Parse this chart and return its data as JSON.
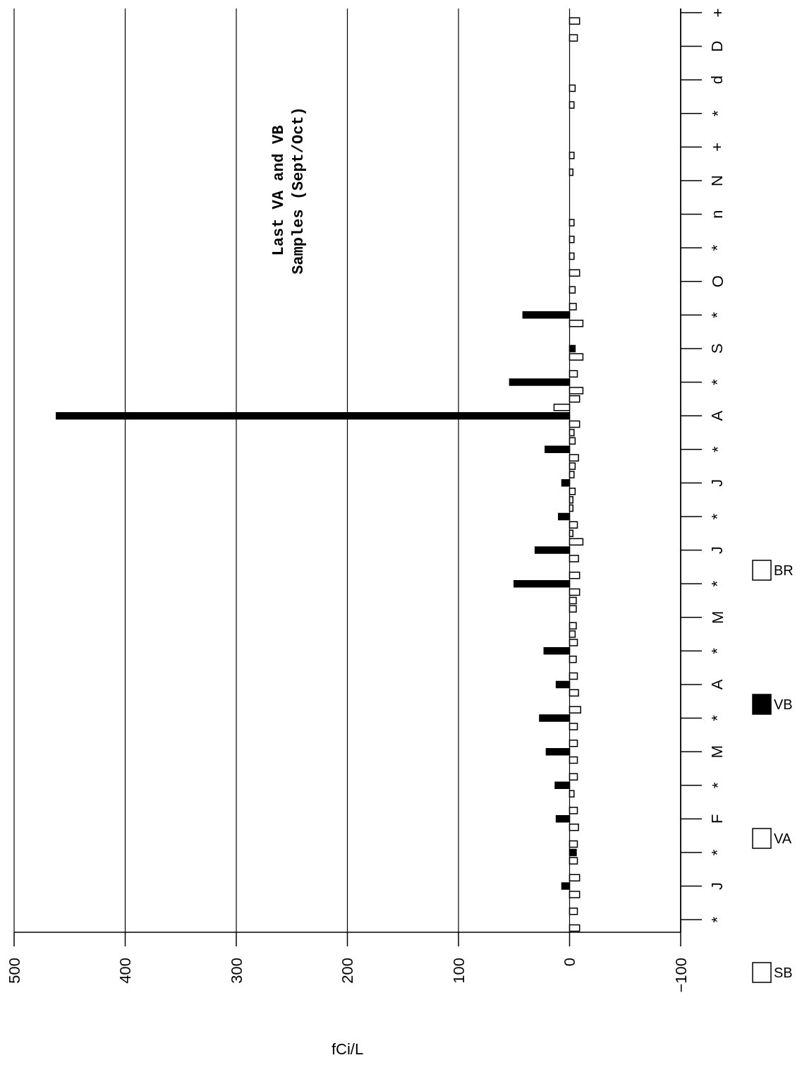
{
  "chart_data": {
    "type": "bar",
    "orientation": "horizontal",
    "stacked": true,
    "xlabel": "fCi/L",
    "annotations": [
      "Last VA and VB Samples (Sept/Oct)"
    ],
    "categories": [
      "+",
      null,
      null,
      null,
      "D",
      null,
      null,
      null,
      "d",
      null,
      null,
      null,
      "*",
      null,
      null,
      null,
      "+",
      null,
      null,
      null,
      "N",
      null,
      null,
      null,
      "n",
      null,
      null,
      null,
      "*",
      null,
      null,
      null,
      "O",
      null,
      null,
      null,
      "*",
      null,
      null,
      null,
      "S",
      null,
      null,
      null,
      "*",
      null,
      null,
      null,
      "A",
      null,
      null,
      null,
      "*",
      null,
      null,
      null,
      "J",
      null,
      null,
      null,
      "*",
      null,
      null,
      null,
      "J",
      null,
      null,
      null,
      "*",
      null,
      null,
      null,
      "M",
      null,
      null,
      null,
      "*",
      null,
      null,
      null,
      "A",
      null,
      null,
      null,
      "*",
      null,
      null,
      null,
      "M",
      null,
      null,
      null,
      "*",
      null,
      null,
      null,
      "F",
      null,
      null,
      null,
      "*",
      null,
      null,
      null,
      "J",
      null,
      null,
      null,
      "*",
      null
    ],
    "series": [
      {
        "name": "SB",
        "color": "#ffffff",
        "values": [
          null,
          null,
          null,
          null,
          null,
          null,
          null,
          null,
          null,
          null,
          null,
          null,
          null,
          null,
          null,
          null,
          null,
          null,
          null,
          null,
          null,
          null,
          null,
          null,
          null,
          null,
          null,
          null,
          null,
          null,
          null,
          -9,
          null,
          null,
          null,
          null,
          null,
          null,
          null,
          null,
          null,
          null,
          null,
          null,
          null,
          null,
          null,
          null,
          null,
          null,
          null,
          null,
          null,
          null,
          null,
          null,
          null,
          null,
          null,
          null,
          null,
          null,
          null,
          -12,
          null,
          null,
          null,
          null,
          null,
          null,
          null,
          null,
          null,
          null,
          null,
          null,
          null,
          null,
          null,
          null,
          null,
          null,
          null,
          null,
          null,
          null,
          null,
          null,
          null,
          null,
          null,
          null,
          null,
          null,
          null,
          null,
          null,
          null,
          null,
          null,
          null,
          null,
          null,
          null,
          null,
          null,
          null,
          null,
          null,
          null
        ]
      },
      {
        "name": "VA",
        "color": "#ffffff",
        "values": [
          null,
          null,
          null,
          null,
          null,
          null,
          null,
          null,
          null,
          null,
          null,
          null,
          null,
          null,
          null,
          null,
          null,
          null,
          null,
          null,
          null,
          null,
          null,
          null,
          null,
          null,
          null,
          null,
          null,
          null,
          null,
          null,
          null,
          null,
          null,
          null,
          null,
          null,
          null,
          null,
          null,
          null,
          null,
          null,
          null,
          null,
          null,
          14,
          null,
          null,
          null,
          null,
          null,
          null,
          null,
          null,
          null,
          null,
          null,
          null,
          null,
          null,
          null,
          null,
          null,
          null,
          null,
          null,
          null,
          null,
          null,
          null,
          null,
          null,
          null,
          null,
          null,
          null,
          null,
          null,
          null,
          null,
          null,
          null,
          null,
          null,
          null,
          null,
          null,
          null,
          null,
          null,
          null,
          null,
          null,
          null,
          null,
          null,
          null,
          null,
          null,
          null,
          null,
          null,
          null,
          null,
          null,
          null,
          null,
          null
        ]
      },
      {
        "name": "VB",
        "color": "#000000",
        "values": [
          null,
          null,
          null,
          null,
          null,
          null,
          null,
          null,
          null,
          null,
          null,
          null,
          null,
          null,
          null,
          null,
          null,
          null,
          null,
          null,
          null,
          null,
          null,
          null,
          null,
          null,
          null,
          null,
          null,
          null,
          null,
          null,
          null,
          null,
          null,
          null,
          42,
          null,
          null,
          null,
          -5,
          null,
          null,
          null,
          54,
          null,
          null,
          null,
          462,
          null,
          null,
          null,
          22,
          null,
          null,
          null,
          7,
          null,
          null,
          null,
          10,
          null,
          null,
          null,
          31,
          null,
          null,
          null,
          50,
          null,
          null,
          null,
          null,
          null,
          null,
          null,
          23,
          null,
          null,
          null,
          12,
          null,
          null,
          null,
          27,
          null,
          null,
          null,
          21,
          null,
          null,
          null,
          13,
          null,
          null,
          null,
          12,
          null,
          null,
          null,
          -6,
          null,
          null,
          null,
          7,
          null,
          null,
          null,
          null,
          null
        ]
      },
      {
        "name": "BR",
        "color": "#ffffff",
        "values": [
          null,
          -9,
          null,
          -7,
          null,
          null,
          null,
          null,
          null,
          -5,
          null,
          -4,
          null,
          null,
          null,
          null,
          null,
          -4,
          null,
          -3,
          null,
          null,
          null,
          null,
          null,
          -4,
          null,
          -4,
          null,
          -4,
          null,
          null,
          null,
          -5,
          null,
          -6,
          null,
          -12,
          null,
          null,
          null,
          -12,
          null,
          -7,
          null,
          -12,
          -9,
          null,
          null,
          -9,
          -4,
          -5,
          null,
          -8,
          -5,
          -4,
          null,
          -5,
          -3,
          -3,
          null,
          -7,
          -3,
          null,
          null,
          -8,
          null,
          -9,
          null,
          -9,
          -6,
          -6,
          null,
          -6,
          -5,
          -7,
          null,
          -6,
          null,
          -7,
          null,
          -8,
          null,
          -10,
          null,
          -7,
          null,
          -7,
          null,
          -7,
          null,
          -7,
          null,
          -4,
          null,
          -7,
          null,
          -8,
          null,
          -7,
          null,
          -7,
          null,
          -9,
          null,
          -9,
          null,
          -7,
          null,
          -9
        ]
      }
    ],
    "xlim": [
      500,
      -100
    ],
    "xticks": [
      500,
      400,
      300,
      200,
      100,
      0,
      -100
    ],
    "grid": "x",
    "legend": "right"
  }
}
